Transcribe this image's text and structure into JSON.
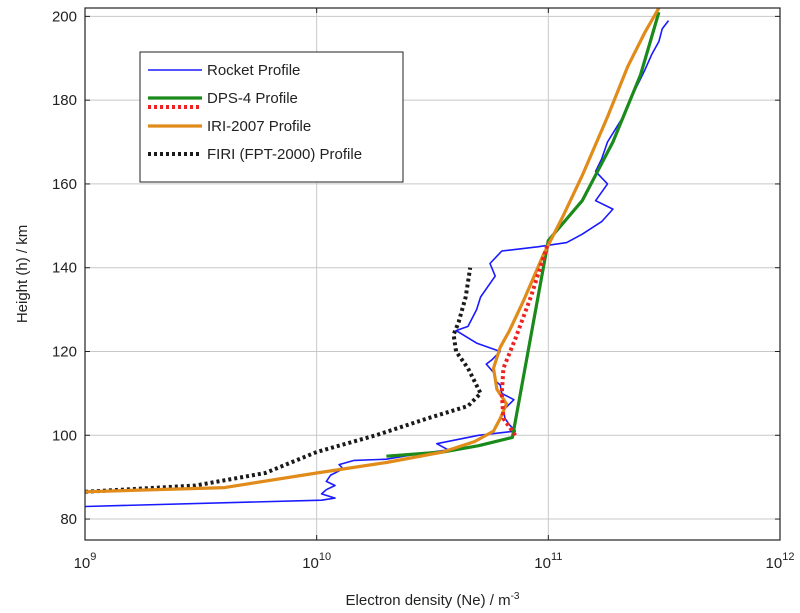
{
  "chart_data": {
    "type": "line",
    "title": "",
    "xlabel": "Electron density (Ne) / m",
    "xlabel_superscript": "-3",
    "ylabel": "Height (h) / km",
    "xscale": "log",
    "xlim": [
      1000000000,
      1000000000000
    ],
    "ylim": [
      75,
      202
    ],
    "grid": true,
    "legend_position": "top-left",
    "x_ticks": [
      {
        "base": "10",
        "exp": "9"
      },
      {
        "base": "10",
        "exp": "10"
      },
      {
        "base": "10",
        "exp": "11"
      },
      {
        "base": "10",
        "exp": "12"
      }
    ],
    "y_ticks": [
      "80",
      "100",
      "120",
      "140",
      "160",
      "180",
      "200"
    ],
    "series": [
      {
        "name": "Rocket Profile",
        "color": "#1a1aff",
        "style": "solid",
        "points": [
          [
            1000000000.0,
            83
          ],
          [
            10500000000.0,
            84.5
          ],
          [
            12000000000.0,
            85
          ],
          [
            10500000000.0,
            86
          ],
          [
            11000000000.0,
            87
          ],
          [
            12000000000.0,
            88
          ],
          [
            11000000000.0,
            89
          ],
          [
            11500000000.0,
            90.5
          ],
          [
            13000000000.0,
            92
          ],
          [
            12500000000.0,
            93
          ],
          [
            14500000000.0,
            94
          ],
          [
            20000000000.0,
            94.3
          ],
          [
            27000000000.0,
            95.5
          ],
          [
            37000000000.0,
            96.5
          ],
          [
            33000000000.0,
            98
          ],
          [
            50000000000.0,
            100
          ],
          [
            72000000000.0,
            101
          ],
          [
            68000000000.0,
            102.5
          ],
          [
            65000000000.0,
            104
          ],
          [
            64000000000.0,
            106
          ],
          [
            71000000000.0,
            108.5
          ],
          [
            63000000000.0,
            110
          ],
          [
            62000000000.0,
            112
          ],
          [
            59000000000.0,
            113
          ],
          [
            58000000000.0,
            115
          ],
          [
            54000000000.0,
            117
          ],
          [
            57000000000.0,
            118
          ],
          [
            62000000000.0,
            120
          ],
          [
            49000000000.0,
            122
          ],
          [
            40000000000.0,
            125
          ],
          [
            45000000000.0,
            126
          ],
          [
            49000000000.0,
            130
          ],
          [
            51000000000.0,
            133
          ],
          [
            59000000000.0,
            138
          ],
          [
            56000000000.0,
            141
          ],
          [
            63000000000.0,
            144
          ],
          [
            90000000000.0,
            145
          ],
          [
            120000000000.0,
            146
          ],
          [
            140000000000.0,
            148
          ],
          [
            170000000000.0,
            151
          ],
          [
            190000000000.0,
            154
          ],
          [
            160000000000.0,
            156
          ],
          [
            180000000000.0,
            160
          ],
          [
            160000000000.0,
            163
          ],
          [
            170000000000.0,
            166
          ],
          [
            180000000000.0,
            170
          ],
          [
            210000000000.0,
            176
          ],
          [
            230000000000.0,
            181
          ],
          [
            260000000000.0,
            187
          ],
          [
            280000000000.0,
            191
          ],
          [
            300000000000.0,
            194
          ],
          [
            310000000000.0,
            197
          ],
          [
            330000000000.0,
            199
          ]
        ]
      },
      {
        "name": "DPS-4 Profile",
        "color": "#1a8a1a",
        "style": "solid",
        "points": [
          [
            20000000000.0,
            95
          ],
          [
            35000000000.0,
            96
          ],
          [
            50000000000.0,
            97.5
          ],
          [
            70000000000.0,
            99.5
          ],
          [
            100000000000.0,
            146.5
          ],
          [
            140000000000.0,
            156
          ],
          [
            190000000000.0,
            170
          ],
          [
            250000000000.0,
            186
          ],
          [
            300000000000.0,
            201
          ]
        ]
      },
      {
        "name": "",
        "color": "#ee2222",
        "style": "dotted",
        "points": [
          [
            72000000000.0,
            100
          ],
          [
            64000000000.0,
            104
          ],
          [
            63000000000.0,
            110
          ],
          [
            64000000000.0,
            116
          ],
          [
            72000000000.0,
            123
          ],
          [
            84000000000.0,
            133
          ],
          [
            100000000000.0,
            146
          ]
        ]
      },
      {
        "name": "IRI-2007 Profile",
        "color": "#e08b1a",
        "style": "solid",
        "points": [
          [
            1000000000.0,
            86.5
          ],
          [
            4000000000.0,
            87.5
          ],
          [
            10000000000.0,
            91
          ],
          [
            20000000000.0,
            93.5
          ],
          [
            35000000000.0,
            96
          ],
          [
            48000000000.0,
            98.5
          ],
          [
            58000000000.0,
            101
          ],
          [
            62000000000.0,
            104
          ],
          [
            66000000000.0,
            107.5
          ],
          [
            60000000000.0,
            111
          ],
          [
            58000000000.0,
            116
          ],
          [
            62000000000.0,
            121
          ],
          [
            68000000000.0,
            125
          ],
          [
            78000000000.0,
            132
          ],
          [
            95000000000.0,
            143
          ],
          [
            115000000000.0,
            152
          ],
          [
            140000000000.0,
            162
          ],
          [
            180000000000.0,
            176
          ],
          [
            220000000000.0,
            188
          ],
          [
            260000000000.0,
            196
          ],
          [
            300000000000.0,
            202
          ]
        ]
      },
      {
        "name": "FIRI (FPT-2000) Profile",
        "color": "#1a1a1a",
        "style": "dotted",
        "points": [
          [
            1000000000.0,
            86.5
          ],
          [
            3000000000.0,
            88
          ],
          [
            6000000000.0,
            91
          ],
          [
            10000000000.0,
            96
          ],
          [
            18000000000.0,
            100
          ],
          [
            30000000000.0,
            104
          ],
          [
            45000000000.0,
            107
          ],
          [
            51000000000.0,
            110
          ],
          [
            45000000000.0,
            116
          ],
          [
            40000000000.0,
            120
          ],
          [
            39000000000.0,
            124
          ],
          [
            41000000000.0,
            127
          ],
          [
            44000000000.0,
            133
          ],
          [
            46000000000.0,
            140
          ]
        ]
      }
    ],
    "legend": [
      {
        "label": "Rocket Profile",
        "swatches": [
          {
            "color": "#1a1aff",
            "style": "solid"
          }
        ]
      },
      {
        "label": "DPS-4 Profile",
        "swatches": [
          {
            "color": "#1a8a1a",
            "style": "solid"
          },
          {
            "color": "#ee2222",
            "style": "dotted"
          }
        ]
      },
      {
        "label": "IRI-2007 Profile",
        "swatches": [
          {
            "color": "#e08b1a",
            "style": "solid"
          }
        ]
      },
      {
        "label": "FIRI (FPT-2000) Profile",
        "swatches": [
          {
            "color": "#1a1a1a",
            "style": "dotted"
          }
        ]
      }
    ]
  }
}
